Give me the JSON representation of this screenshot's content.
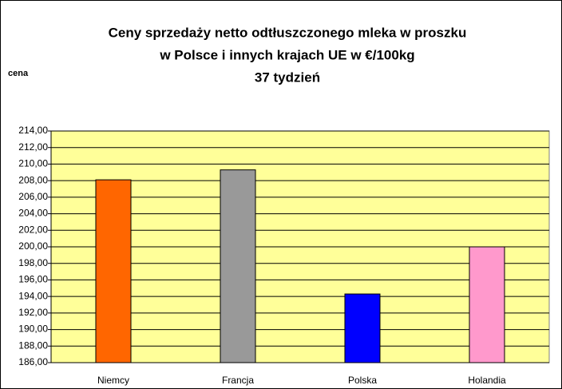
{
  "chart_data": {
    "type": "bar",
    "title": [
      "Ceny sprzedaży netto odtłuszczonego mleka w proszku",
      "w Polsce i innych krajach UE w €/100kg",
      "37 tydzień"
    ],
    "ylabel": "cena",
    "categories": [
      "Niemcy",
      "Francja",
      "Polska",
      "Holandia"
    ],
    "values": [
      208.1,
      209.3,
      194.3,
      200.0
    ],
    "colors": [
      "#ff6600",
      "#999999",
      "#0000ff",
      "#ff99cc"
    ],
    "ylim": [
      186,
      214
    ],
    "yticks": [
      {
        "value": 186,
        "label": "186,00"
      },
      {
        "value": 188,
        "label": "188,00"
      },
      {
        "value": 190,
        "label": "190,00"
      },
      {
        "value": 192,
        "label": "192,00"
      },
      {
        "value": 194,
        "label": "194,00"
      },
      {
        "value": 196,
        "label": "196,00"
      },
      {
        "value": 198,
        "label": "198,00"
      },
      {
        "value": 200,
        "label": "200,00"
      },
      {
        "value": 202,
        "label": "202,00"
      },
      {
        "value": 204,
        "label": "204,00"
      },
      {
        "value": 206,
        "label": "206,00"
      },
      {
        "value": 208,
        "label": "208,00"
      },
      {
        "value": 210,
        "label": "210,00"
      },
      {
        "value": 212,
        "label": "212,00"
      },
      {
        "value": 214,
        "label": "214,00"
      }
    ],
    "grid": true
  }
}
